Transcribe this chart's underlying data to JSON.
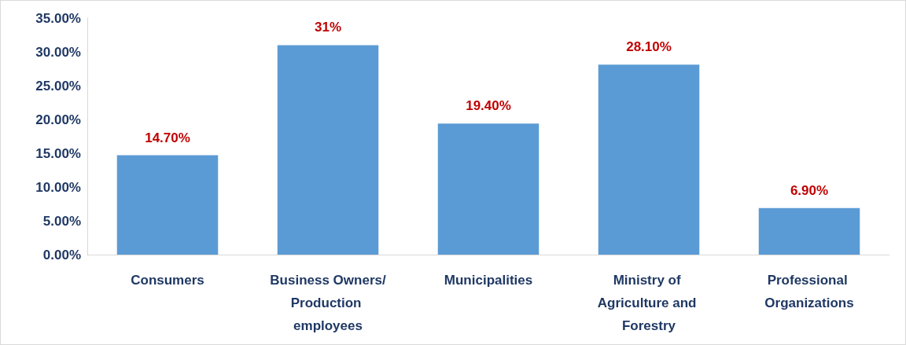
{
  "chart_data": {
    "type": "bar",
    "categories": [
      "Consumers",
      "Business Owners/Production employees",
      "Municipalities",
      "Ministry of Agriculture and Forestry",
      "Professional Organizations"
    ],
    "values": [
      14.7,
      31,
      19.4,
      28.1,
      6.9
    ],
    "value_labels": [
      "14.70%",
      "31%",
      "19.40%",
      "28.10%",
      "6.90%"
    ],
    "color": "#5b9bd5",
    "ylim": [
      0,
      35
    ],
    "yticks": [
      {
        "value": 0,
        "label": "0.00%"
      },
      {
        "value": 5,
        "label": "5.00%"
      },
      {
        "value": 10,
        "label": "10.00%"
      },
      {
        "value": 15,
        "label": "15.00%"
      },
      {
        "value": 20,
        "label": "20.00%"
      },
      {
        "value": 25,
        "label": "25.00%"
      },
      {
        "value": 30,
        "label": "30.00%"
      },
      {
        "value": 35,
        "label": "35.00%"
      }
    ],
    "grid": false
  }
}
